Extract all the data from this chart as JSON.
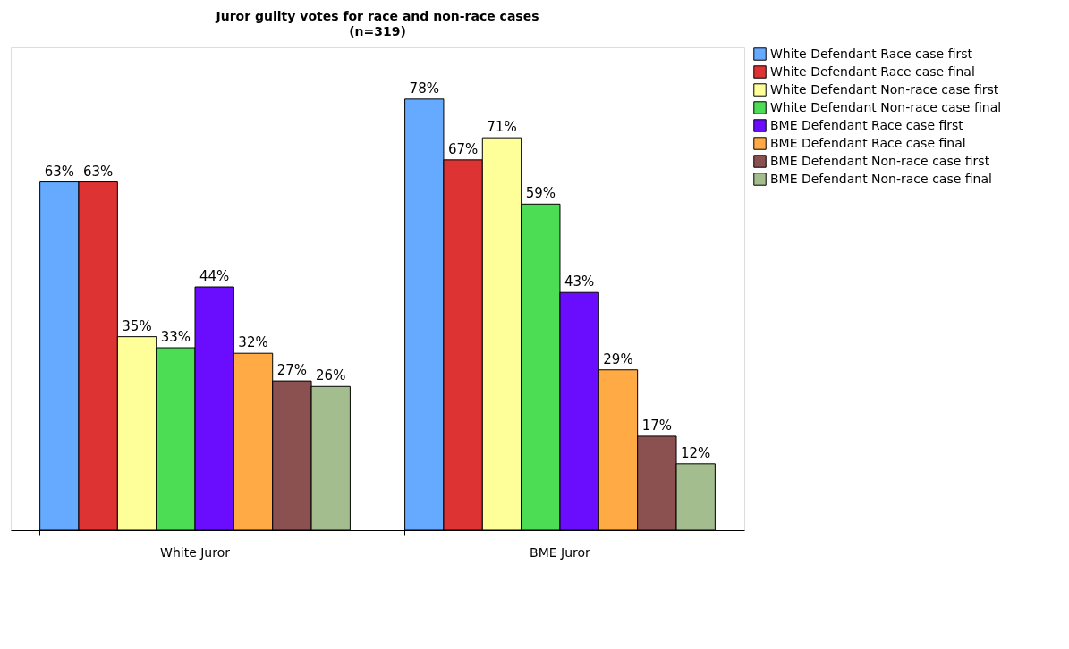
{
  "chart_data": {
    "type": "bar",
    "title": "Juror guilty votes for race and non-race cases",
    "subtitle": "(n=319)",
    "categories": [
      "White Juror",
      "BME Juror"
    ],
    "series": [
      {
        "name": "White Defendant Race case first",
        "color": "#66aaff",
        "values": [
          63,
          78
        ],
        "value_labels": [
          "63%",
          "78%"
        ]
      },
      {
        "name": "White Defendant Race case final",
        "color": "#dd3333",
        "values": [
          63,
          67
        ],
        "value_labels": [
          "63%",
          "67%"
        ]
      },
      {
        "name": "White Defendant Non-race case first",
        "color": "#ffff99",
        "values": [
          35,
          71
        ],
        "value_labels": [
          "35%",
          "71%"
        ]
      },
      {
        "name": "White Defendant Non-race case final",
        "color": "#4ddd55",
        "values": [
          33,
          59
        ],
        "value_labels": [
          "33%",
          "59%"
        ]
      },
      {
        "name": "BME Defendant Race case first",
        "color": "#6a0dff",
        "values": [
          44,
          43
        ],
        "value_labels": [
          "44%",
          "43%"
        ]
      },
      {
        "name": "BME Defendant Race case  final",
        "color": "#ffaa44",
        "values": [
          32,
          29
        ],
        "value_labels": [
          "32%",
          "29%"
        ]
      },
      {
        "name": "BME Defendant Non-race case first",
        "color": "#8b5050",
        "values": [
          27,
          17
        ],
        "value_labels": [
          "27%",
          "17%"
        ]
      },
      {
        "name": "BME Defendant Non-race case final",
        "color": "#a3bd8e",
        "values": [
          26,
          12
        ],
        "value_labels": [
          "26%",
          "12%"
        ]
      }
    ],
    "legend": "right",
    "grid": false
  }
}
